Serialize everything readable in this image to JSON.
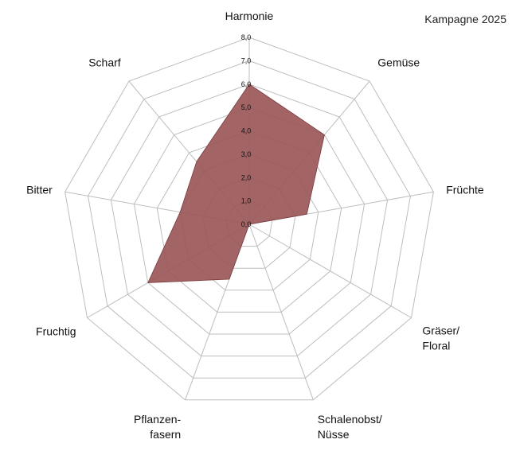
{
  "campaign_label": "Kampagne 2025",
  "colors": {
    "fill": "#9b5759",
    "stroke": "#7a3b3d",
    "grid": "#bdbdbd"
  },
  "chart_data": {
    "type": "radar",
    "title": "",
    "axes": [
      {
        "label": [
          "Harmonie"
        ],
        "value": 6.0
      },
      {
        "label": [
          "Gemüse"
        ],
        "value": 5.0
      },
      {
        "label": [
          "Früchte"
        ],
        "value": 2.5
      },
      {
        "label": [
          "Gräser/",
          "Floral"
        ],
        "value": 0.0
      },
      {
        "label": [
          "Schalenobst/",
          "Nüsse"
        ],
        "value": 0.0
      },
      {
        "label": [
          "Pflanzen-",
          "fasern"
        ],
        "value": 2.5
      },
      {
        "label": [
          "Fruchtig"
        ],
        "value": 5.0
      },
      {
        "label": [
          "Bitter"
        ],
        "value": 3.0
      },
      {
        "label": [
          "Scharf"
        ],
        "value": 3.5
      }
    ],
    "rlim": [
      0,
      8
    ],
    "ticks": [
      "0,0",
      "1,0",
      "2,0",
      "3,0",
      "4,0",
      "5,0",
      "6,0",
      "7,0",
      "8,0"
    ],
    "grid": true
  }
}
